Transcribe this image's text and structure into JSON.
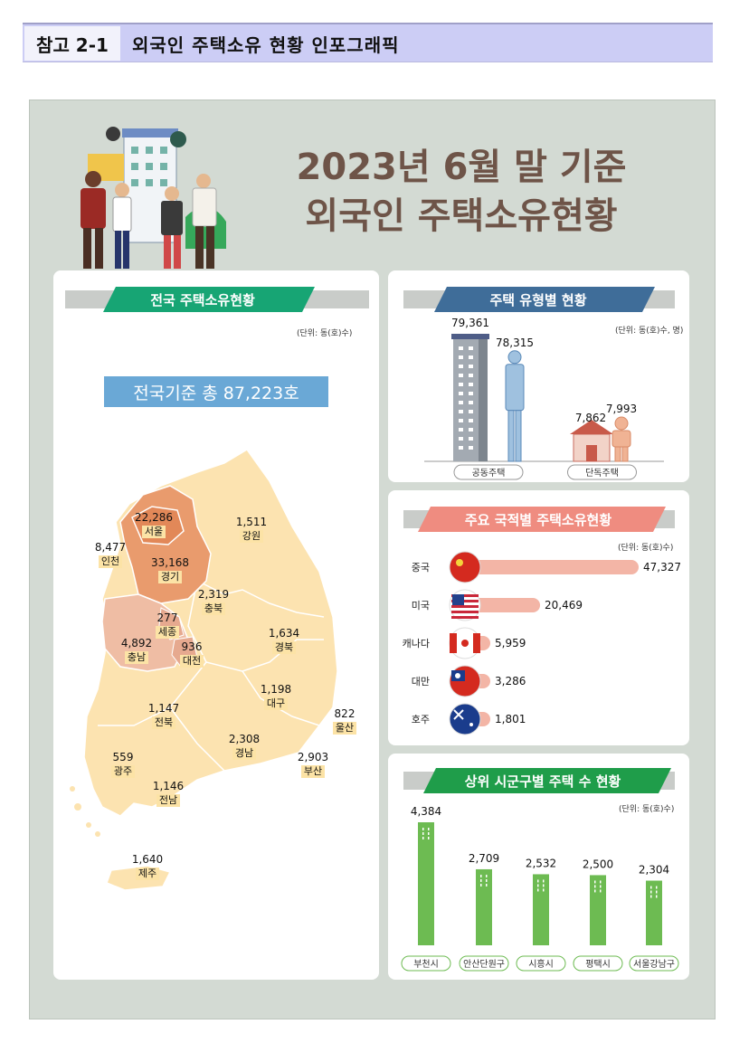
{
  "header": {
    "tag": "참고 2-1",
    "title": "외국인 주택소유 현황 인포그래픽"
  },
  "main_title": {
    "line1": "2023년 6월 말 기준",
    "line2": "외국인 주택소유현황"
  },
  "national": {
    "ribbon": "전국 주택소유현황",
    "unit": "(단위: 동(호)수)",
    "total": "전국기준 총 87,223호",
    "regions": [
      {
        "name": "서울",
        "value": "22,286"
      },
      {
        "name": "인천",
        "value": "8,477"
      },
      {
        "name": "경기",
        "value": "33,168"
      },
      {
        "name": "강원",
        "value": "1,511"
      },
      {
        "name": "충북",
        "value": "2,319"
      },
      {
        "name": "세종",
        "value": "277"
      },
      {
        "name": "충남",
        "value": "4,892"
      },
      {
        "name": "대전",
        "value": "936"
      },
      {
        "name": "경북",
        "value": "1,634"
      },
      {
        "name": "대구",
        "value": "1,198"
      },
      {
        "name": "전북",
        "value": "1,147"
      },
      {
        "name": "울산",
        "value": "822"
      },
      {
        "name": "경남",
        "value": "2,308"
      },
      {
        "name": "광주",
        "value": "559"
      },
      {
        "name": "부산",
        "value": "2,903"
      },
      {
        "name": "전남",
        "value": "1,146"
      },
      {
        "name": "제주",
        "value": "1,640"
      }
    ]
  },
  "chart_data": [
    {
      "type": "bar",
      "title": "주택 유형별 현황",
      "unit": "(단위: 동(호)수, 명)",
      "categories": [
        "공동주택",
        "단독주택"
      ],
      "series": [
        {
          "values": [
            79361,
            7862
          ]
        },
        {
          "values": [
            78315,
            7993
          ]
        }
      ],
      "labels": [
        [
          "79,361",
          "78,315"
        ],
        [
          "7,862",
          "7,993"
        ]
      ]
    },
    {
      "type": "bar",
      "title": "주요 국적별 주택소유현황",
      "unit": "(단위: 동(호)수)",
      "categories": [
        "중국",
        "미국",
        "캐나다",
        "대만",
        "호주"
      ],
      "values": [
        47327,
        20469,
        5959,
        3286,
        1801
      ],
      "labels": [
        "47,327",
        "20,469",
        "5,959",
        "3,286",
        "1,801"
      ],
      "orientation": "horizontal",
      "colors": {
        "bar": "#f3b5a6"
      }
    },
    {
      "type": "bar",
      "title": "상위 시군구별 주택 수 현황",
      "unit": "(단위: 동(호)수)",
      "categories": [
        "부천시",
        "안산단원구",
        "시흥시",
        "평택시",
        "서울강남구"
      ],
      "values": [
        4384,
        2709,
        2532,
        2500,
        2304
      ],
      "labels": [
        "4,384",
        "2,709",
        "2,532",
        "2,500",
        "2,304"
      ],
      "colors": {
        "bar": "#6dbb52"
      }
    }
  ],
  "colors": {
    "title": "#6e5448",
    "ribbon_green": "#17a574",
    "ribbon_blue": "#3f6d99",
    "ribbon_salmon": "#ef8c80",
    "ribbon_dkgreen": "#1f9d4a"
  }
}
